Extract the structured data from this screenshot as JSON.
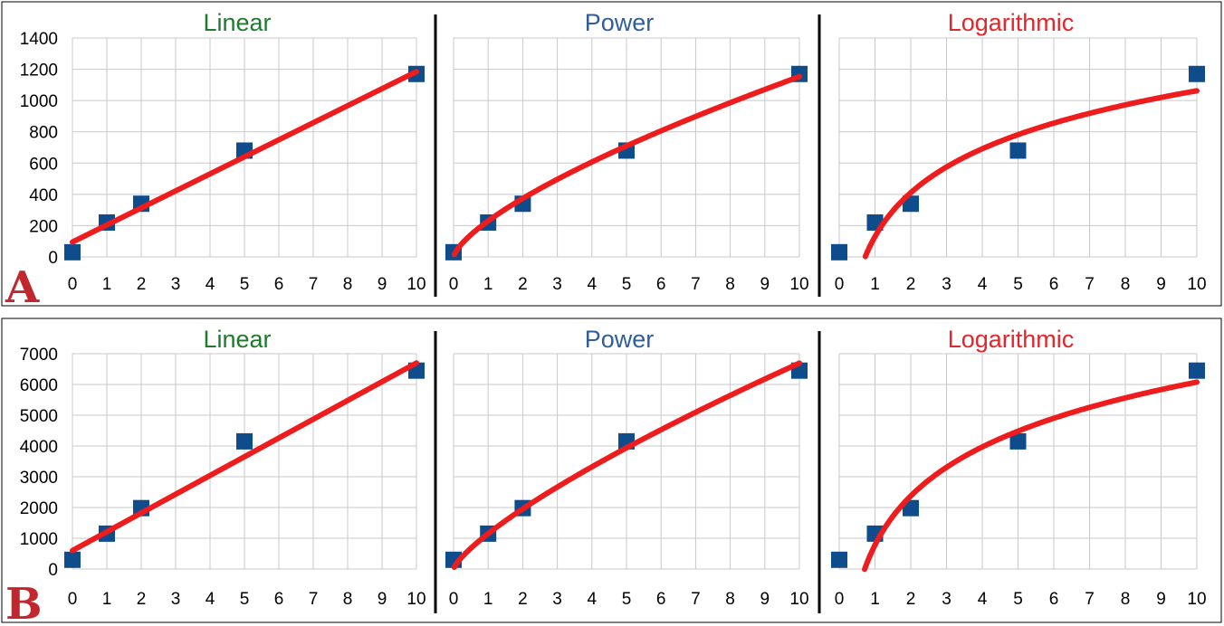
{
  "figure_panels": [
    {
      "label": "A"
    },
    {
      "label": "B"
    }
  ],
  "colors": {
    "linear_title": "#1f7a2e",
    "power_title": "#2f5f9a",
    "log_title": "#e3262b",
    "marker": "#0f4c8c",
    "trendline": "#ee1c1c",
    "panel_label": "#c0282d",
    "grid": "#c8c8c8",
    "divider": "#000000"
  },
  "chart_data": [
    {
      "type": "scatter",
      "panel": "A",
      "title": "Linear",
      "title_color": "linear_title",
      "fit": "linear",
      "x": [
        0,
        1,
        2,
        5,
        10
      ],
      "y": [
        30,
        220,
        340,
        680,
        1170
      ],
      "fit_curve": {
        "x_start": 0,
        "x_end": 10,
        "y_start": 95,
        "y_end": 1185
      },
      "xlim": [
        0,
        10
      ],
      "ylim": [
        0,
        1400
      ],
      "xticks": [
        "0",
        "1",
        "2",
        "3",
        "4",
        "5",
        "6",
        "7",
        "8",
        "9",
        "10"
      ],
      "yticks": [
        "0",
        "200",
        "400",
        "600",
        "800",
        "1000",
        "1200",
        "1400"
      ],
      "show_ytick_labels": true,
      "grid": true
    },
    {
      "type": "scatter",
      "panel": "A",
      "title": "Power",
      "title_color": "power_title",
      "fit": "power",
      "x": [
        0,
        1,
        2,
        5,
        10
      ],
      "y": [
        30,
        220,
        340,
        680,
        1170
      ],
      "fit_curve": {
        "a": 230,
        "b": 0.7,
        "x_start": 0.02,
        "x_end": 10
      },
      "xlim": [
        0,
        10
      ],
      "ylim": [
        0,
        1400
      ],
      "xticks": [
        "0",
        "1",
        "2",
        "3",
        "4",
        "5",
        "6",
        "7",
        "8",
        "9",
        "10"
      ],
      "show_ytick_labels": false,
      "grid": true
    },
    {
      "type": "scatter",
      "panel": "A",
      "title": "Logarithmic",
      "title_color": "log_title",
      "fit": "logarithmic",
      "x": [
        0,
        1,
        2,
        5,
        10
      ],
      "y": [
        30,
        220,
        340,
        680,
        1170
      ],
      "fit_curve": {
        "a": 130,
        "b": 405,
        "x_start": 0.73,
        "x_end": 10
      },
      "xlim": [
        0,
        10
      ],
      "ylim": [
        0,
        1400
      ],
      "xticks": [
        "0",
        "1",
        "2",
        "3",
        "4",
        "5",
        "6",
        "7",
        "8",
        "9",
        "10"
      ],
      "show_ytick_labels": false,
      "grid": true
    },
    {
      "type": "scatter",
      "panel": "B",
      "title": "Linear",
      "title_color": "linear_title",
      "fit": "linear",
      "x": [
        0,
        1,
        2,
        5,
        10
      ],
      "y": [
        300,
        1150,
        1980,
        4150,
        6450
      ],
      "fit_curve": {
        "x_start": 0,
        "x_end": 10,
        "y_start": 600,
        "y_end": 6700
      },
      "xlim": [
        0,
        10
      ],
      "ylim": [
        0,
        7000
      ],
      "xticks": [
        "0",
        "1",
        "2",
        "3",
        "4",
        "5",
        "6",
        "7",
        "8",
        "9",
        "10"
      ],
      "yticks": [
        "0",
        "1000",
        "2000",
        "3000",
        "4000",
        "5000",
        "6000",
        "7000"
      ],
      "show_ytick_labels": true,
      "grid": true
    },
    {
      "type": "scatter",
      "panel": "B",
      "title": "Power",
      "title_color": "power_title",
      "fit": "power",
      "x": [
        0,
        1,
        2,
        5,
        10
      ],
      "y": [
        300,
        1150,
        1980,
        4150,
        6450
      ],
      "fit_curve": {
        "a": 1150,
        "b": 0.765,
        "x_start": 0.02,
        "x_end": 10
      },
      "xlim": [
        0,
        10
      ],
      "ylim": [
        0,
        7000
      ],
      "xticks": [
        "0",
        "1",
        "2",
        "3",
        "4",
        "5",
        "6",
        "7",
        "8",
        "9",
        "10"
      ],
      "show_ytick_labels": false,
      "grid": true
    },
    {
      "type": "scatter",
      "panel": "B",
      "title": "Logarithmic",
      "title_color": "log_title",
      "fit": "logarithmic",
      "x": [
        0,
        1,
        2,
        5,
        10
      ],
      "y": [
        300,
        1150,
        1980,
        4150,
        6450
      ],
      "fit_curve": {
        "a": 780,
        "b": 2300,
        "x_start": 0.71,
        "x_end": 10
      },
      "xlim": [
        0,
        10
      ],
      "ylim": [
        0,
        7000
      ],
      "xticks": [
        "0",
        "1",
        "2",
        "3",
        "4",
        "5",
        "6",
        "7",
        "8",
        "9",
        "10"
      ],
      "show_ytick_labels": false,
      "grid": true
    }
  ]
}
